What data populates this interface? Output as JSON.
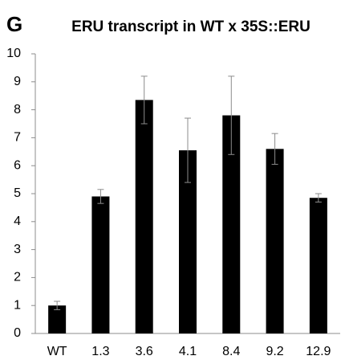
{
  "chart_data": {
    "type": "bar",
    "panel_label": "G",
    "title": "ERU transcript in WT x 35S::ERU",
    "categories": [
      "WT",
      "1.3",
      "3.6",
      "4.1",
      "8.4",
      "9.2",
      "12.9"
    ],
    "values": [
      1.0,
      4.9,
      8.35,
      6.55,
      7.8,
      6.6,
      4.85
    ],
    "errors": [
      0.15,
      0.25,
      0.85,
      1.15,
      1.4,
      0.55,
      0.15
    ],
    "color": "#000000",
    "error_color": "#8c8c8c",
    "ylim": [
      0,
      10
    ],
    "yticks": [
      0,
      1,
      2,
      3,
      4,
      5,
      6,
      7,
      8,
      9,
      10
    ],
    "grid": false
  }
}
